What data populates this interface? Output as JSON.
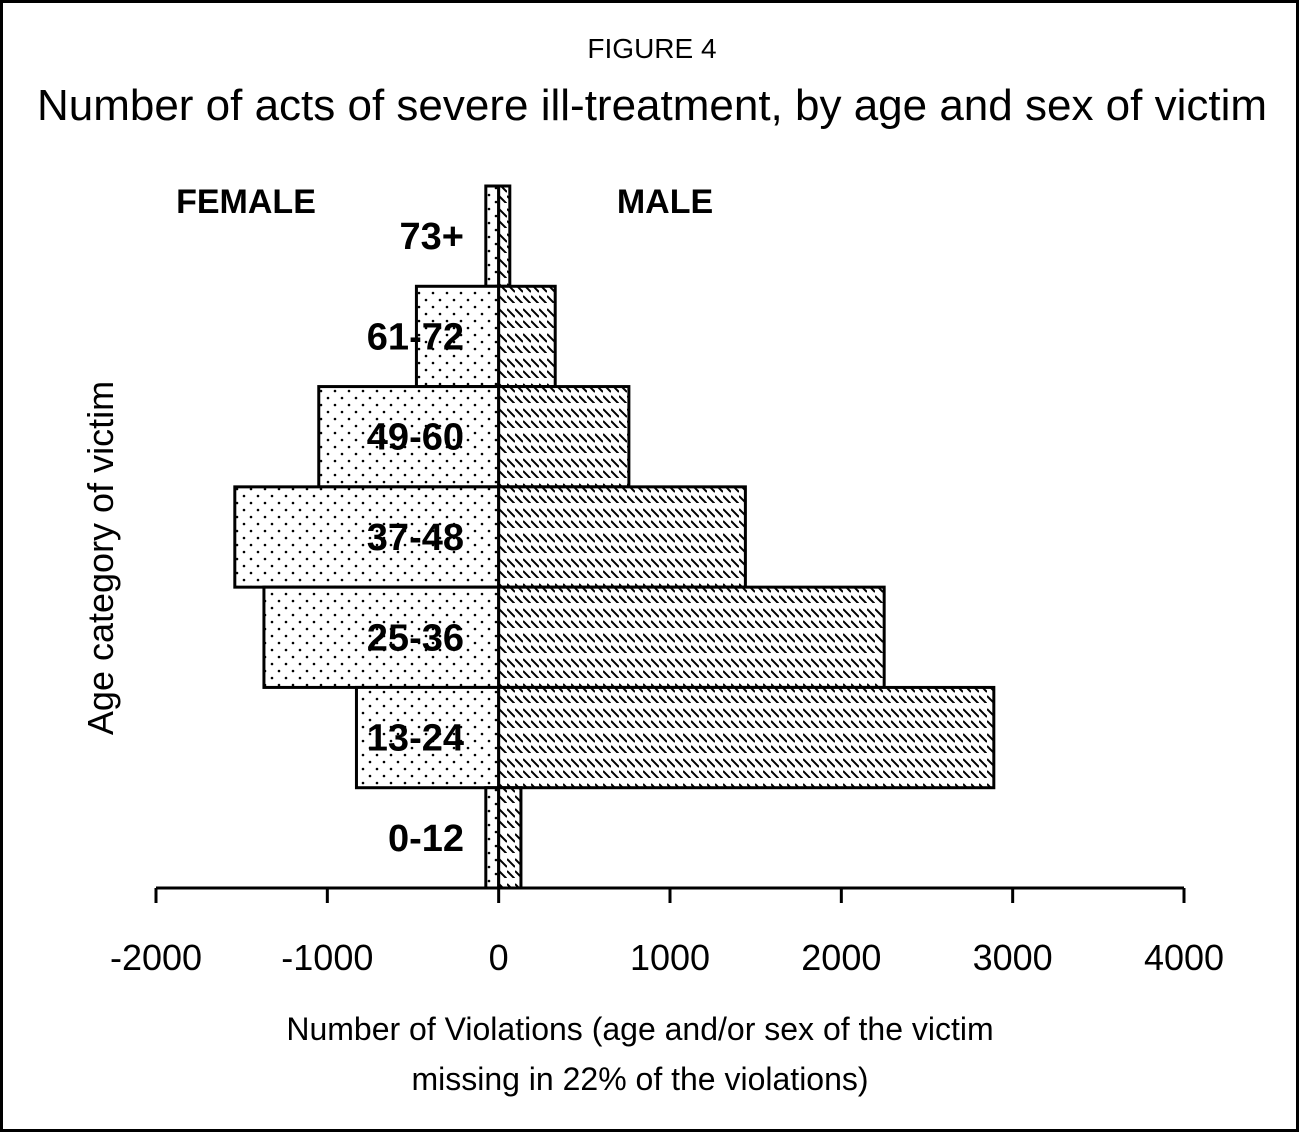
{
  "chart_data": {
    "type": "bar",
    "orientation": "horizontal-population-pyramid",
    "figure_label": "FIGURE 4",
    "title": "Number of acts of severe ill-treatment, by age and sex of victim",
    "xlabel_line1": "Number of Violations (age and/or sex of the victim",
    "xlabel_line2": "missing in 22% of the violations)",
    "ylabel": "Age category of victim",
    "xlim": [
      -2000,
      4000
    ],
    "xticks": [
      "-2000",
      "-1000",
      "0",
      "1000",
      "2000",
      "3000",
      "4000"
    ],
    "xtick_values": [
      -2000,
      -1000,
      0,
      1000,
      2000,
      3000,
      4000
    ],
    "side_labels": {
      "female": "FEMALE",
      "male": "MALE"
    },
    "categories": [
      "73+",
      "61-72",
      "49-60",
      "37-48",
      "25-36",
      "13-24",
      "0-12"
    ],
    "series": [
      {
        "name": "FEMALE",
        "values": [
          -75,
          -480,
          -1050,
          -1540,
          -1370,
          -830,
          -75
        ]
      },
      {
        "name": "MALE",
        "values": [
          65,
          330,
          760,
          1440,
          2250,
          2890,
          130
        ]
      }
    ],
    "grid": false
  }
}
